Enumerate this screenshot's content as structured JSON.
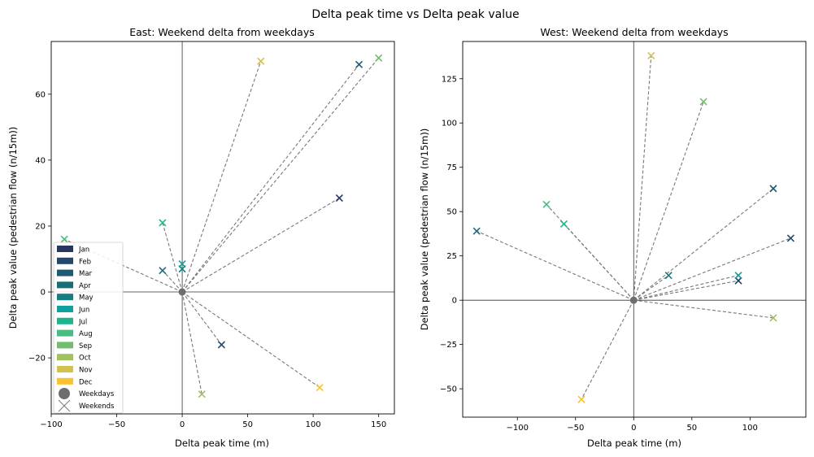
{
  "figure": {
    "suptitle": "Delta peak time vs Delta peak value"
  },
  "chart_data": [
    {
      "type": "scatter",
      "title": "East: Weekend delta from weekdays",
      "xlabel": "Delta peak time (m)",
      "ylabel": "Delta peak value (pedestrian flow (n/15m))",
      "xlim": [
        -100,
        162
      ],
      "ylim": [
        -37,
        76
      ],
      "xticks": [
        -100,
        -50,
        0,
        50,
        100,
        150
      ],
      "yticks": [
        -20,
        0,
        20,
        40,
        60
      ],
      "xtick_labels": [
        "−100",
        "−50",
        "0",
        "50",
        "100",
        "150"
      ],
      "ytick_labels": [
        "−20",
        "0",
        "20",
        "40",
        "60"
      ],
      "weekday_point": {
        "x": 0,
        "y": 0
      },
      "points": [
        {
          "month": "Jan",
          "x": 120,
          "y": 28.5
        },
        {
          "month": "Feb",
          "x": 30,
          "y": -16
        },
        {
          "month": "Mar",
          "x": 135,
          "y": 69
        },
        {
          "month": "Apr",
          "x": -15,
          "y": 6.5
        },
        {
          "month": "May",
          "x": 0,
          "y": 7
        },
        {
          "month": "Jun",
          "x": 0,
          "y": 8.5
        },
        {
          "month": "Jul",
          "x": -15,
          "y": 21
        },
        {
          "month": "Aug",
          "x": -90,
          "y": 16
        },
        {
          "month": "Sep",
          "x": 150,
          "y": 71
        },
        {
          "month": "Oct",
          "x": 15,
          "y": -31
        },
        {
          "month": "Nov",
          "x": 60,
          "y": 70
        },
        {
          "month": "Dec",
          "x": 105,
          "y": -29
        }
      ],
      "legend": {
        "placement": "lower-left",
        "months": [
          "Jan",
          "Feb",
          "Mar",
          "Apr",
          "May",
          "Jun",
          "Jul",
          "Aug",
          "Sep",
          "Oct",
          "Nov",
          "Dec"
        ],
        "weekdays_label": "Weekdays",
        "weekends_label": "Weekends"
      },
      "grid": false
    },
    {
      "type": "scatter",
      "title": "West: Weekend delta from weekdays",
      "xlabel": "Delta peak time (m)",
      "ylabel": "Delta peak value (pedestrian flow (n/15m))",
      "xlim": [
        -147,
        148
      ],
      "ylim": [
        -66,
        146
      ],
      "xticks": [
        -100,
        -50,
        0,
        50,
        100
      ],
      "yticks": [
        -50,
        -25,
        0,
        25,
        50,
        75,
        100,
        125
      ],
      "xtick_labels": [
        "−100",
        "−50",
        "0",
        "50",
        "100"
      ],
      "ytick_labels": [
        "−50",
        "−25",
        "0",
        "25",
        "50",
        "75",
        "100",
        "125"
      ],
      "weekday_point": {
        "x": 0,
        "y": 0
      },
      "points": [
        {
          "month": "Jan",
          "x": 90,
          "y": 11
        },
        {
          "month": "Feb",
          "x": 135,
          "y": 35
        },
        {
          "month": "Mar",
          "x": 120,
          "y": 63
        },
        {
          "month": "Apr",
          "x": -135,
          "y": 39
        },
        {
          "month": "May",
          "x": 30,
          "y": 14
        },
        {
          "month": "Jun",
          "x": 90,
          "y": 14
        },
        {
          "month": "Jul",
          "x": -60,
          "y": 43
        },
        {
          "month": "Aug",
          "x": -75,
          "y": 54
        },
        {
          "month": "Sep",
          "x": 60,
          "y": 112
        },
        {
          "month": "Oct",
          "x": 120,
          "y": -10
        },
        {
          "month": "Nov",
          "x": 15,
          "y": 138
        },
        {
          "month": "Dec",
          "x": -45,
          "y": -56
        }
      ],
      "grid": false
    }
  ],
  "colors": {
    "Jan": "#253760",
    "Feb": "#23486b",
    "Mar": "#1f5a72",
    "Apr": "#1a6c79",
    "May": "#147e80",
    "Jun": "#10a19b",
    "Jul": "#1fb48c",
    "Aug": "#4bbb82",
    "Sep": "#75bd6e",
    "Oct": "#a2c05f",
    "Nov": "#d1c14e",
    "Dec": "#fbc130",
    "weekday": "#6e6e6e",
    "line": "#777777"
  }
}
